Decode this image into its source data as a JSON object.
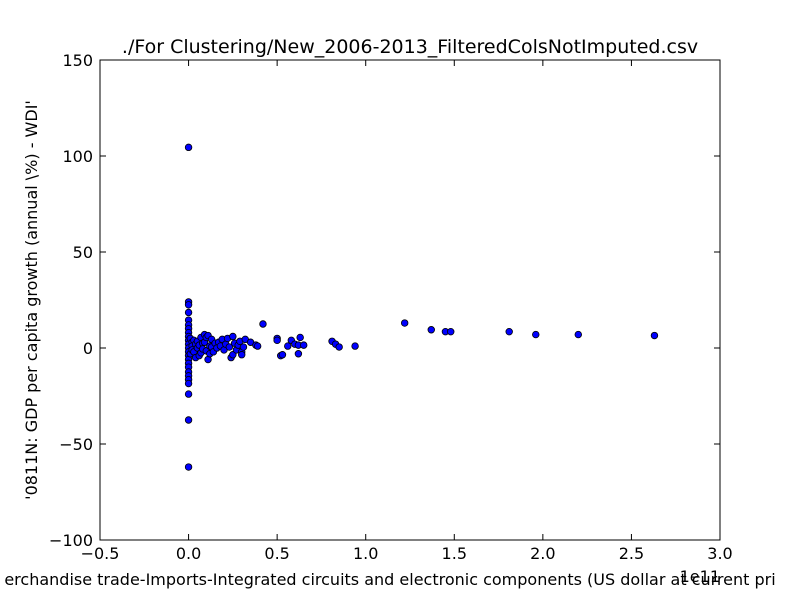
{
  "chart_data": {
    "type": "scatter",
    "title": "./For Clustering/New_2006-2013_FilteredColsNotImputed.csv",
    "xlabel": "erchandise trade-Imports-Integrated circuits and electronic components (US dollar at current pri",
    "ylabel": "'0811N: GDP per capita growth  (annual \\%) - WDI'",
    "x_offset_label": "1e11",
    "xlim": [
      -0.5,
      3.0
    ],
    "ylim": [
      -100,
      150
    ],
    "x_ticks": [
      "−0.5",
      "0.0",
      "0.5",
      "1.0",
      "1.5",
      "2.0",
      "2.5",
      "3.0"
    ],
    "y_ticks": [
      "−100",
      "−50",
      "0",
      "50",
      "100",
      "150"
    ],
    "x_tick_values": [
      -0.5,
      0.0,
      0.5,
      1.0,
      1.5,
      2.0,
      2.5,
      3.0
    ],
    "y_tick_values": [
      -100,
      -50,
      0,
      50,
      100,
      150
    ],
    "grid": false,
    "marker_color": "#0000ff",
    "marker_edge_color": "#000000",
    "points": [
      {
        "x": 0.0,
        "y": 104.5
      },
      {
        "x": 0.0,
        "y": 24.0
      },
      {
        "x": 0.0,
        "y": 22.5
      },
      {
        "x": 0.0,
        "y": 18.5
      },
      {
        "x": 0.0,
        "y": 14.5
      },
      {
        "x": 0.0,
        "y": 12.0
      },
      {
        "x": 0.0,
        "y": 10.0
      },
      {
        "x": 0.0,
        "y": 8.0
      },
      {
        "x": 0.0,
        "y": 6.0
      },
      {
        "x": 0.0,
        "y": 4.0
      },
      {
        "x": 0.0,
        "y": 2.0
      },
      {
        "x": 0.0,
        "y": 0.0
      },
      {
        "x": 0.0,
        "y": -2.0
      },
      {
        "x": 0.0,
        "y": -4.0
      },
      {
        "x": 0.0,
        "y": -6.0
      },
      {
        "x": 0.0,
        "y": -8.0
      },
      {
        "x": 0.0,
        "y": -10.0
      },
      {
        "x": 0.0,
        "y": -12.5
      },
      {
        "x": 0.0,
        "y": -14.5
      },
      {
        "x": 0.0,
        "y": -16.5
      },
      {
        "x": 0.0,
        "y": -18.5
      },
      {
        "x": 0.0,
        "y": -24.0
      },
      {
        "x": 0.0,
        "y": -37.5
      },
      {
        "x": 0.0,
        "y": -62.0
      },
      {
        "x": 0.01,
        "y": 5.0
      },
      {
        "x": 0.01,
        "y": -3.0
      },
      {
        "x": 0.02,
        "y": 3.0
      },
      {
        "x": 0.02,
        "y": 1.0
      },
      {
        "x": 0.02,
        "y": -1.0
      },
      {
        "x": 0.03,
        "y": 4.0
      },
      {
        "x": 0.03,
        "y": -2.0
      },
      {
        "x": 0.04,
        "y": 2.0
      },
      {
        "x": 0.04,
        "y": -5.0
      },
      {
        "x": 0.05,
        "y": 0.0
      },
      {
        "x": 0.05,
        "y": 3.5
      },
      {
        "x": 0.06,
        "y": -4.0
      },
      {
        "x": 0.06,
        "y": 1.5
      },
      {
        "x": 0.07,
        "y": 5.5
      },
      {
        "x": 0.07,
        "y": -2.5
      },
      {
        "x": 0.08,
        "y": 2.5
      },
      {
        "x": 0.08,
        "y": -0.5
      },
      {
        "x": 0.09,
        "y": 7.0
      },
      {
        "x": 0.09,
        "y": 3.0
      },
      {
        "x": 0.1,
        "y": -1.5
      },
      {
        "x": 0.1,
        "y": 5.5
      },
      {
        "x": 0.11,
        "y": -6.0
      },
      {
        "x": 0.11,
        "y": 6.5
      },
      {
        "x": 0.12,
        "y": 1.0
      },
      {
        "x": 0.12,
        "y": -3.0
      },
      {
        "x": 0.13,
        "y": 4.5
      },
      {
        "x": 0.13,
        "y": 0.5
      },
      {
        "x": 0.14,
        "y": -2.0
      },
      {
        "x": 0.15,
        "y": 2.5
      },
      {
        "x": 0.16,
        "y": 0.0
      },
      {
        "x": 0.17,
        "y": 3.0
      },
      {
        "x": 0.18,
        "y": 1.0
      },
      {
        "x": 0.19,
        "y": 4.5
      },
      {
        "x": 0.2,
        "y": -1.0
      },
      {
        "x": 0.21,
        "y": 2.0
      },
      {
        "x": 0.22,
        "y": 5.0
      },
      {
        "x": 0.23,
        "y": 0.5
      },
      {
        "x": 0.24,
        "y": -5.0
      },
      {
        "x": 0.25,
        "y": 6.0
      },
      {
        "x": 0.25,
        "y": -3.5
      },
      {
        "x": 0.26,
        "y": 2.5
      },
      {
        "x": 0.27,
        "y": -1.0
      },
      {
        "x": 0.28,
        "y": 1.5
      },
      {
        "x": 0.29,
        "y": 3.5
      },
      {
        "x": 0.3,
        "y": -2.0
      },
      {
        "x": 0.31,
        "y": 0.5
      },
      {
        "x": 0.32,
        "y": 4.5
      },
      {
        "x": 0.3,
        "y": -3.5
      },
      {
        "x": 0.35,
        "y": 3.0
      },
      {
        "x": 0.38,
        "y": 1.5
      },
      {
        "x": 0.39,
        "y": 1.0
      },
      {
        "x": 0.42,
        "y": 12.5
      },
      {
        "x": 0.5,
        "y": 5.0
      },
      {
        "x": 0.5,
        "y": 4.0
      },
      {
        "x": 0.52,
        "y": -4.0
      },
      {
        "x": 0.53,
        "y": -3.5
      },
      {
        "x": 0.56,
        "y": 1.0
      },
      {
        "x": 0.58,
        "y": 4.0
      },
      {
        "x": 0.6,
        "y": 2.0
      },
      {
        "x": 0.62,
        "y": -3.0
      },
      {
        "x": 0.62,
        "y": 1.5
      },
      {
        "x": 0.63,
        "y": 5.5
      },
      {
        "x": 0.65,
        "y": 1.5
      },
      {
        "x": 0.81,
        "y": 3.5
      },
      {
        "x": 0.83,
        "y": 2.0
      },
      {
        "x": 0.85,
        "y": 0.5
      },
      {
        "x": 0.94,
        "y": 1.0
      },
      {
        "x": 1.22,
        "y": 13.0
      },
      {
        "x": 1.37,
        "y": 9.5
      },
      {
        "x": 1.45,
        "y": 8.5
      },
      {
        "x": 1.48,
        "y": 8.5
      },
      {
        "x": 1.81,
        "y": 8.5
      },
      {
        "x": 1.96,
        "y": 7.0
      },
      {
        "x": 2.2,
        "y": 7.0
      },
      {
        "x": 2.63,
        "y": 6.5
      }
    ]
  }
}
